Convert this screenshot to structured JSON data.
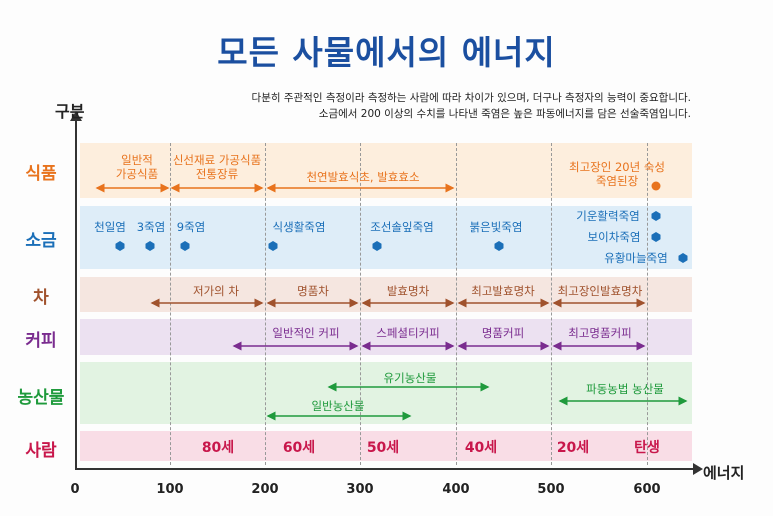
{
  "title": "모든 사물에서의 에너지",
  "subtitle": [
    "다분히 주관적인 측정이라 측정하는 사람에 따라 차이가 있으며, 더구나 측정자의 능력이 중요합니다.",
    "소금에서 200 이상의 수치를 나타낸 죽염은 높은 파동에너지를 담은 선술죽염입니다."
  ],
  "axes": {
    "y_label": "구분",
    "x_label": "에너지",
    "ticks": [
      "0",
      "100",
      "200",
      "300",
      "400",
      "500",
      "600"
    ]
  },
  "colors": {
    "food": "#e8731d",
    "salt": "#1b6fb8",
    "tea": "#a0522d",
    "coffee": "#7a2c8f",
    "farm": "#1f9a3c",
    "person": "#c8174b"
  },
  "rows": {
    "food": {
      "label": "식품",
      "items": [
        "일반적\n가공식품",
        "신선재료 가공식품\n전통장류",
        "천연발효식초, 발효효소",
        "최고장인 20년 숙성\n죽염된장"
      ]
    },
    "salt": {
      "label": "소금",
      "items": [
        "천일염",
        "3죽염",
        "9죽염",
        "식생활죽염",
        "조선솔잎죽염",
        "붉은빛죽염",
        "기운활력죽염",
        "보이차죽염",
        "유황마늘죽염"
      ]
    },
    "tea": {
      "label": "차",
      "items": [
        "저가의 차",
        "명품차",
        "발효명차",
        "최고발효명차",
        "최고장인발효명차"
      ]
    },
    "coffee": {
      "label": "커피",
      "items": [
        "일반적인 커피",
        "스페셜티커피",
        "명품커피",
        "최고명품커피"
      ]
    },
    "farm": {
      "label": "농산물",
      "items": [
        "유기농산물",
        "일반농산물",
        "파동농법 농산물"
      ]
    },
    "person": {
      "label": "사람",
      "items": [
        "80세",
        "60세",
        "50세",
        "40세",
        "20세",
        "탄생"
      ]
    }
  }
}
